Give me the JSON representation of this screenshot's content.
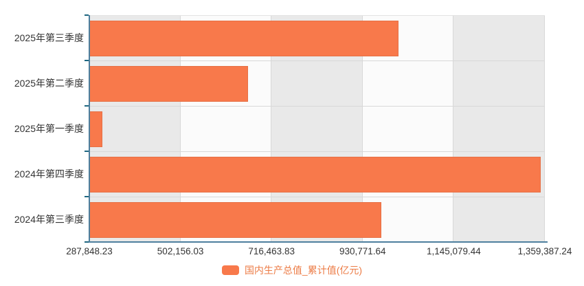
{
  "chart_data": {
    "type": "bar",
    "orientation": "horizontal",
    "title": "",
    "categories": [
      "2025年第三季度",
      "2025年第二季度",
      "2025年第一季度",
      "2024年第四季度",
      "2024年第三季度"
    ],
    "series": [
      {
        "name": "国内生产总值_累计值(亿元)",
        "values": [
          1015036.8,
          660536.0,
          318758.0,
          1349083.5,
          975300.0
        ]
      }
    ],
    "x_axis": {
      "min": 287848.23,
      "max": 1359387.24,
      "tick_labels": [
        "287,848.23",
        "502,156.03",
        "716,463.83",
        "930,771.64",
        "1,145,079.44",
        "1,359,387.24"
      ],
      "tick_values": [
        287848.23,
        502156.03,
        716463.83,
        930771.64,
        1145079.44,
        1359387.24
      ]
    },
    "legend": {
      "label": "国内生产总值_累计值(亿元)",
      "position": "bottom"
    },
    "grid": "on",
    "split_area": "alternating-vertical-bands"
  },
  "colors": {
    "bar": "#f8794b",
    "legend_text": "#ec7b45",
    "axis_line": "#4d7f9e",
    "axis_tick": "#1d6680",
    "band_gray": "#e9e9e9",
    "band_light": "#fbfbfb",
    "grid_line": "#d8d8d8",
    "label_text": "#333333"
  }
}
